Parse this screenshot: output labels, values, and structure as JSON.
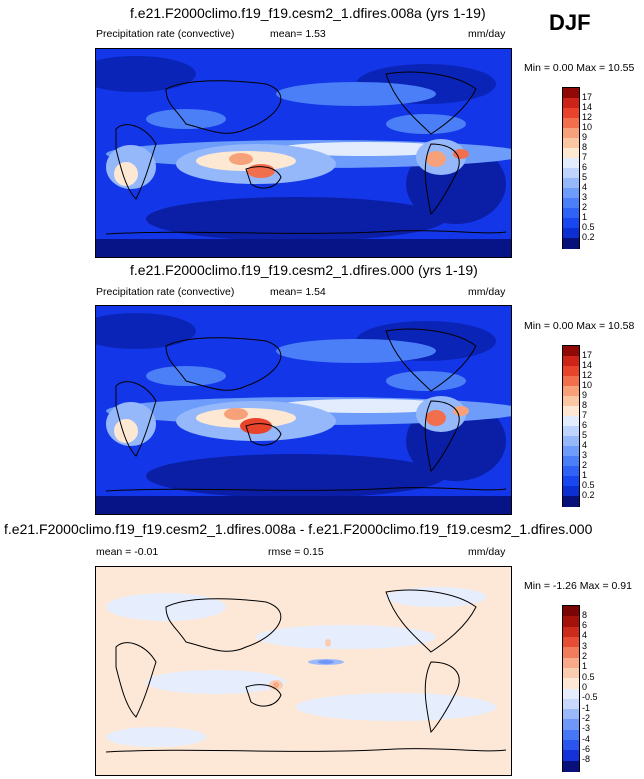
{
  "season_label": "DJF",
  "panels": [
    {
      "title": "f.e21.F2000climo.f19_f19.cesm2_1.dfires.008a (yrs 1-19)",
      "variable_label": "Precipitation rate (convective)",
      "stat_text": "mean=   1.53",
      "units": "mm/day",
      "minmax_text": "Min =   0.00 Max =  10.55",
      "colorbar_labels": [
        "17",
        "14",
        "12",
        "10",
        "9",
        "8",
        "7",
        "6",
        "5",
        "4",
        "3",
        "2",
        "1",
        "0.5",
        "0.2"
      ]
    },
    {
      "title": "f.e21.F2000climo.f19_f19.cesm2_1.dfires.000 (yrs 1-19)",
      "variable_label": "Precipitation rate (convective)",
      "stat_text": "mean=   1.54",
      "units": "mm/day",
      "minmax_text": "Min =   0.00 Max =  10.58",
      "colorbar_labels": [
        "17",
        "14",
        "12",
        "10",
        "9",
        "8",
        "7",
        "6",
        "5",
        "4",
        "3",
        "2",
        "1",
        "0.5",
        "0.2"
      ]
    },
    {
      "title": "f.e21.F2000climo.f19_f19.cesm2_1.dfires.008a - f.e21.F2000climo.f19_f19.cesm2_1.dfires.000",
      "variable_label": "mean =  -0.01",
      "stat_text": "rmse =   0.15",
      "units": "mm/day",
      "minmax_text": "Min =  -1.26 Max =   0.91",
      "colorbar_labels": [
        "8",
        "6",
        "4",
        "3",
        "2",
        "1",
        "0.5",
        "0",
        "-0.5",
        "-1",
        "-2",
        "-3",
        "-4",
        "-6",
        "-8"
      ]
    }
  ],
  "chart_data": [
    {
      "type": "heatmap",
      "title": "f.e21.F2000climo.f19_f19.cesm2_1.dfires.008a (yrs 1-19)",
      "subtitle": "Precipitation rate (convective)",
      "mean": 1.53,
      "min": 0.0,
      "max": 10.55,
      "units": "mm/day",
      "levels": [
        0.2,
        0.5,
        1,
        2,
        3,
        4,
        5,
        6,
        7,
        8,
        9,
        10,
        12,
        14,
        17
      ],
      "colors": [
        "#08107a",
        "#0b2fd0",
        "#1847f0",
        "#2e63f5",
        "#4a7ff8",
        "#6d9cfa",
        "#95b8fb",
        "#bfd4fc",
        "#e3ecfd",
        "#fde8d4",
        "#fbc7a3",
        "#f7a17a",
        "#f26f4e",
        "#e8432b",
        "#cc2418",
        "#8f0a06"
      ]
    },
    {
      "type": "heatmap",
      "title": "f.e21.F2000climo.f19_f19.cesm2_1.dfires.000 (yrs 1-19)",
      "subtitle": "Precipitation rate (convective)",
      "mean": 1.54,
      "min": 0.0,
      "max": 10.58,
      "units": "mm/day",
      "levels": [
        0.2,
        0.5,
        1,
        2,
        3,
        4,
        5,
        6,
        7,
        8,
        9,
        10,
        12,
        14,
        17
      ],
      "colors": [
        "#08107a",
        "#0b2fd0",
        "#1847f0",
        "#2e63f5",
        "#4a7ff8",
        "#6d9cfa",
        "#95b8fb",
        "#bfd4fc",
        "#e3ecfd",
        "#fde8d4",
        "#fbc7a3",
        "#f7a17a",
        "#f26f4e",
        "#e8432b",
        "#cc2418",
        "#8f0a06"
      ]
    },
    {
      "type": "heatmap",
      "title": "f.e21.F2000climo.f19_f19.cesm2_1.dfires.008a - f.e21.F2000climo.f19_f19.cesm2_1.dfires.000",
      "mean": -0.01,
      "rmse": 0.15,
      "min": -1.26,
      "max": 0.91,
      "units": "mm/day",
      "levels": [
        -8,
        -6,
        -4,
        -3,
        -2,
        -1,
        -0.5,
        0,
        0.5,
        1,
        2,
        3,
        4,
        6,
        8
      ],
      "colors": [
        "#08107a",
        "#1432d8",
        "#2a55ee",
        "#4677f5",
        "#6f97f8",
        "#9bb8fa",
        "#c7d8fc",
        "#e6eefd",
        "#fde8d8",
        "#fbcdb0",
        "#f7a98a",
        "#f07c5c",
        "#e54e34",
        "#cc2a1a",
        "#a5120a",
        "#7a0505"
      ]
    }
  ]
}
